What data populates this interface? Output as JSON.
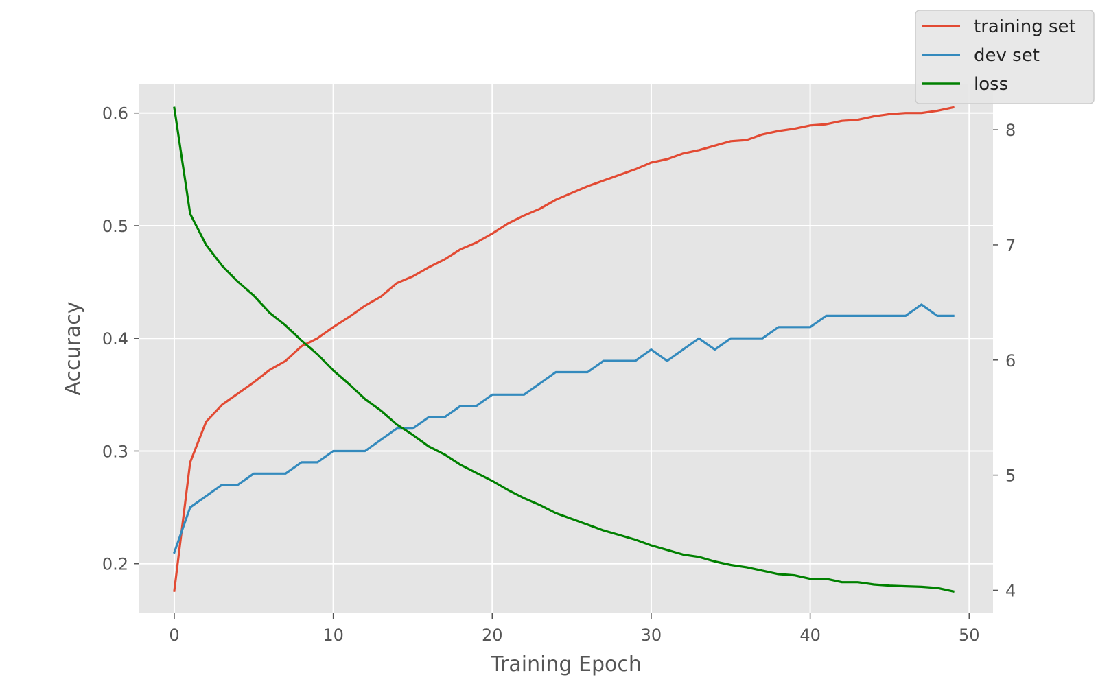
{
  "chart_data": {
    "type": "line",
    "title": "",
    "xlabel": "Training Epoch",
    "ylabel": "Accuracy",
    "y2label": "",
    "xlim": [
      -2.2,
      51.5
    ],
    "ylim": [
      0.156,
      0.626
    ],
    "y2lim": [
      3.8,
      8.4
    ],
    "xticks": [
      0,
      10,
      20,
      30,
      40,
      50
    ],
    "yticks": [
      0.2,
      0.3,
      0.4,
      0.5,
      0.6
    ],
    "y2ticks": [
      4,
      5,
      6,
      7,
      8
    ],
    "xtick_labels": [
      "0",
      "10",
      "20",
      "30",
      "40",
      "50"
    ],
    "ytick_labels": [
      "0.2",
      "0.3",
      "0.4",
      "0.5",
      "0.6"
    ],
    "y2tick_labels": [
      "4",
      "5",
      "6",
      "7",
      "8"
    ],
    "grid": true,
    "legend_position": "top-right",
    "background_color": "#e5e5e5",
    "x": [
      0,
      1,
      2,
      3,
      4,
      5,
      6,
      7,
      8,
      9,
      10,
      11,
      12,
      13,
      14,
      15,
      16,
      17,
      18,
      19,
      20,
      21,
      22,
      23,
      24,
      25,
      26,
      27,
      28,
      29,
      30,
      31,
      32,
      33,
      34,
      35,
      36,
      37,
      38,
      39,
      40,
      41,
      42,
      43,
      44,
      45,
      46,
      47,
      48,
      49
    ],
    "series": [
      {
        "name": "training set",
        "axis": "left",
        "color": "#e24a33",
        "values": [
          0.176,
          0.29,
          0.326,
          0.341,
          0.351,
          0.361,
          0.372,
          0.38,
          0.393,
          0.4,
          0.41,
          0.419,
          0.429,
          0.437,
          0.449,
          0.455,
          0.463,
          0.47,
          0.479,
          0.485,
          0.493,
          0.502,
          0.509,
          0.515,
          0.523,
          0.529,
          0.535,
          0.54,
          0.545,
          0.55,
          0.556,
          0.559,
          0.564,
          0.567,
          0.571,
          0.575,
          0.576,
          0.581,
          0.584,
          0.586,
          0.589,
          0.59,
          0.593,
          0.594,
          0.597,
          0.599,
          0.6,
          0.6,
          0.602,
          0.605
        ]
      },
      {
        "name": "dev set",
        "axis": "left",
        "color": "#348abd",
        "values": [
          0.21,
          0.25,
          0.26,
          0.27,
          0.27,
          0.28,
          0.28,
          0.28,
          0.29,
          0.29,
          0.3,
          0.3,
          0.3,
          0.31,
          0.32,
          0.32,
          0.33,
          0.33,
          0.34,
          0.34,
          0.35,
          0.35,
          0.35,
          0.36,
          0.37,
          0.37,
          0.37,
          0.38,
          0.38,
          0.38,
          0.39,
          0.38,
          0.39,
          0.4,
          0.39,
          0.4,
          0.4,
          0.4,
          0.41,
          0.41,
          0.41,
          0.42,
          0.42,
          0.42,
          0.42,
          0.42,
          0.42,
          0.43,
          0.42,
          0.42
        ]
      },
      {
        "name": "loss",
        "axis": "right",
        "color": "#008000",
        "values": [
          8.19,
          7.27,
          7.0,
          6.82,
          6.68,
          6.56,
          6.41,
          6.3,
          6.17,
          6.05,
          5.91,
          5.79,
          5.66,
          5.56,
          5.44,
          5.35,
          5.25,
          5.18,
          5.09,
          5.02,
          4.95,
          4.87,
          4.8,
          4.74,
          4.67,
          4.62,
          4.57,
          4.52,
          4.48,
          4.44,
          4.39,
          4.35,
          4.31,
          4.29,
          4.25,
          4.22,
          4.2,
          4.17,
          4.14,
          4.13,
          4.1,
          4.1,
          4.07,
          4.07,
          4.05,
          4.04,
          4.035,
          4.03,
          4.02,
          3.99
        ]
      }
    ]
  }
}
